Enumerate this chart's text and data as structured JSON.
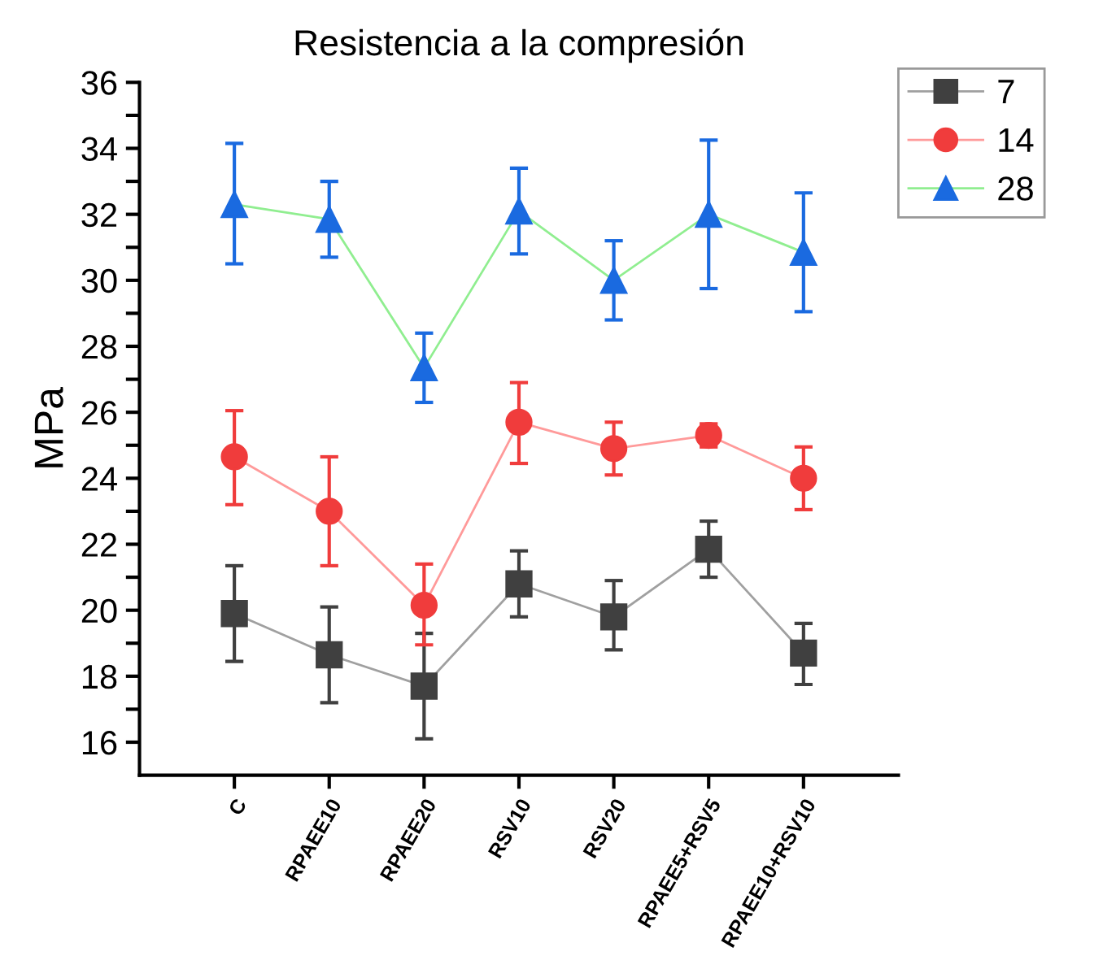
{
  "chart_data": {
    "type": "line",
    "title": "Resistencia a la compresión",
    "ylabel": "MPa",
    "categories": [
      "C",
      "RPAEE10",
      "RPAEE20",
      "RSV10",
      "RSV20",
      "RPAEE5+RSV5",
      "RPAEE10+RSV10"
    ],
    "series": [
      {
        "name": "7",
        "color": "#404040",
        "marker": "square",
        "values": [
          19.9,
          18.65,
          17.7,
          20.8,
          19.8,
          21.85,
          18.7
        ],
        "errors": [
          [
            18.45,
            21.35
          ],
          [
            17.2,
            20.1
          ],
          [
            16.1,
            19.3
          ],
          [
            19.8,
            21.8
          ],
          [
            18.8,
            20.9
          ],
          [
            21.0,
            22.7
          ],
          [
            17.75,
            19.6
          ]
        ]
      },
      {
        "name": "14",
        "color": "#f03c3c",
        "marker": "circle",
        "values": [
          24.65,
          23.0,
          20.15,
          25.7,
          24.9,
          25.3,
          24.0
        ],
        "errors": [
          [
            23.2,
            26.05
          ],
          [
            21.35,
            24.65
          ],
          [
            18.95,
            21.4
          ],
          [
            24.45,
            26.9
          ],
          [
            24.1,
            25.7
          ],
          [
            24.95,
            25.65
          ],
          [
            23.05,
            24.95
          ]
        ]
      },
      {
        "name": "28",
        "color": "#1a6ae0",
        "marker": "triangle",
        "values": [
          32.3,
          31.85,
          27.35,
          32.1,
          30.0,
          32.0,
          30.85
        ],
        "errors": [
          [
            30.5,
            34.15
          ],
          [
            30.7,
            33.0
          ],
          [
            26.3,
            28.4
          ],
          [
            30.8,
            33.4
          ],
          [
            28.8,
            31.2
          ],
          [
            29.75,
            34.25
          ],
          [
            29.05,
            32.65
          ]
        ]
      }
    ],
    "ylim": [
      15,
      36
    ],
    "yticks": [
      16,
      {
        "value": 17,
        "label": null
      },
      18,
      {
        "value": 19,
        "label": null
      },
      20,
      {
        "value": 21,
        "label": null
      },
      22,
      {
        "value": 23,
        "label": null
      },
      24,
      {
        "value": 25,
        "label": null
      },
      26,
      {
        "value": 27,
        "label": null
      },
      28,
      {
        "value": 29,
        "label": null
      },
      30,
      {
        "value": 31,
        "label": null
      },
      32,
      {
        "value": 33,
        "label": null
      },
      34,
      {
        "value": 35,
        "label": null
      },
      36
    ],
    "grid": false,
    "legend": "top right",
    "line_style": "solid"
  }
}
